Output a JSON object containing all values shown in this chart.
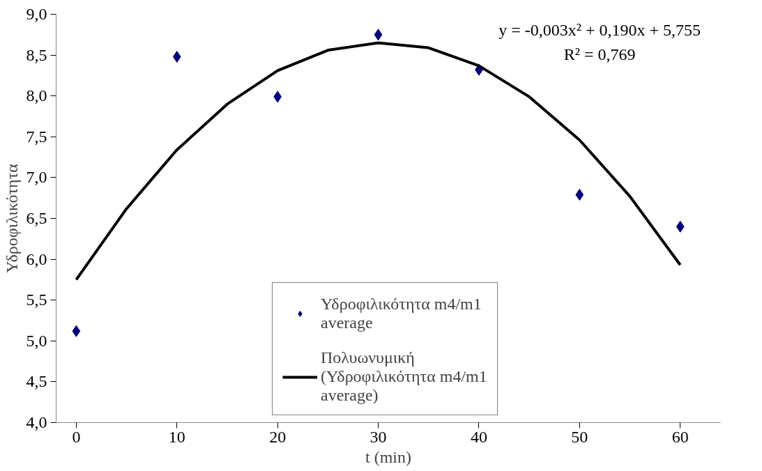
{
  "chart_data": {
    "type": "scatter",
    "xlabel": "t (min)",
    "ylabel": "Υδροφιλικότητα",
    "x": [
      0,
      10,
      20,
      30,
      40,
      50,
      60
    ],
    "series": [
      {
        "name": "Υδροφιλικότητα m4/m1 average",
        "marker": "diamond",
        "color": "#000080",
        "values": [
          5.12,
          8.48,
          7.99,
          8.75,
          8.32,
          6.79,
          6.4
        ]
      },
      {
        "name": "Πολυωνυμική (Υδροφιλικότητα m4/m1 average)",
        "type": "line",
        "marker": "none",
        "line_style": "solid",
        "color": "#000000",
        "x": [
          0,
          5,
          10,
          15,
          20,
          25,
          30,
          35,
          40,
          45,
          50,
          55,
          60
        ],
        "values": [
          5.75,
          6.62,
          7.34,
          7.9,
          8.31,
          8.56,
          8.65,
          8.59,
          8.37,
          7.99,
          7.46,
          6.77,
          5.93
        ]
      }
    ],
    "annotations": [
      "y = -0,003x² + 0,190x + 5,755",
      "R² = 0,769"
    ],
    "xlim": [
      -2,
      64
    ],
    "xticks": [
      0,
      10,
      20,
      30,
      40,
      50,
      60
    ],
    "ylim": [
      4.0,
      9.0
    ],
    "yticks": [
      {
        "value": 4.0,
        "label": "4,0"
      },
      {
        "value": 4.5,
        "label": "4,5"
      },
      {
        "value": 5.0,
        "label": "5,0"
      },
      {
        "value": 5.5,
        "label": "5,5"
      },
      {
        "value": 6.0,
        "label": "6,0"
      },
      {
        "value": 6.5,
        "label": "6,5"
      },
      {
        "value": 7.0,
        "label": "7,0"
      },
      {
        "value": 7.5,
        "label": "7,5"
      },
      {
        "value": 8.0,
        "label": "8,0"
      },
      {
        "value": 8.5,
        "label": "8,5"
      },
      {
        "value": 9.0,
        "label": "9,0"
      }
    ],
    "grid": false,
    "legend": "bottom right"
  }
}
